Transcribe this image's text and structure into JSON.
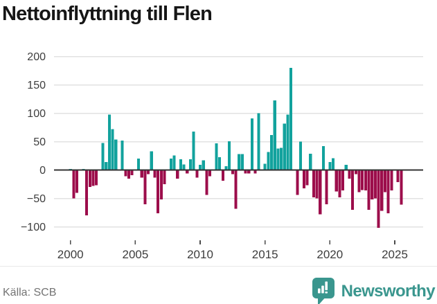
{
  "title": "Nettoinflyttning till Flen",
  "footer": {
    "source": "Källa: SCB",
    "brand": "Newsworthy"
  },
  "colors": {
    "positive": "#12a29d",
    "negative": "#9c0d4b",
    "grid": "#e2e2e2",
    "zero_line": "#333333",
    "axis_text": "#3d3d3d",
    "title_text": "#161616",
    "source_text": "#737373",
    "logo": "#3a968e",
    "divider": "#e8e8e8",
    "background": "#ffffff"
  },
  "chart_data": {
    "type": "bar",
    "title": "Nettoinflyttning till Flen",
    "frequency": "quarterly",
    "start_period": "2000Q1",
    "end_period": "2025Q3",
    "xlabel": "",
    "ylabel": "",
    "grid": true,
    "legend_position": "none",
    "ylim": [
      -115,
      215
    ],
    "y_ticks": [
      200,
      150,
      100,
      50,
      0,
      -50,
      -100
    ],
    "y_tick_labels": [
      "200",
      "150",
      "100",
      "50",
      "0",
      "−50",
      "−100"
    ],
    "x_tick_years": [
      2000,
      2005,
      2010,
      2015,
      2020,
      2025
    ],
    "x_tick_labels": [
      "2000",
      "2005",
      "2010",
      "2015",
      "2020",
      "2025"
    ],
    "values": [
      2,
      -50,
      -40,
      0,
      2,
      -80,
      -30,
      -28,
      -27,
      0,
      48,
      14,
      98,
      72,
      54,
      0,
      52,
      -11,
      -15,
      -9,
      0,
      20,
      -13,
      -60,
      -7,
      33,
      -13,
      -76,
      -52,
      -25,
      0,
      20,
      26,
      -15,
      19,
      10,
      -6,
      19,
      68,
      -13,
      9,
      17,
      -44,
      -11,
      0,
      47,
      23,
      -19,
      7,
      51,
      -7,
      -68,
      28,
      28,
      -6,
      -6,
      91,
      -6,
      100,
      0,
      11,
      32,
      62,
      123,
      38,
      39,
      82,
      98,
      180,
      0,
      -44,
      50,
      -32,
      -27,
      29,
      -48,
      -50,
      -78,
      42,
      -60,
      14,
      21,
      -38,
      -48,
      -36,
      9,
      -15,
      -70,
      -7,
      -39,
      -35,
      -36,
      -70,
      -52,
      -50,
      -102,
      -72,
      -39,
      -76,
      -36,
      0,
      -21,
      -61
    ]
  }
}
